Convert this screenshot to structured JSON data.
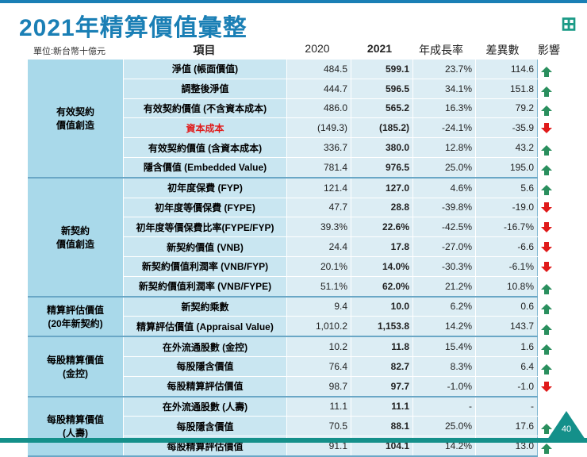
{
  "title": "2021年精算價值彙整",
  "unit": "單位:新台幣十億元",
  "headers": {
    "item": "項目",
    "y2020": "2020",
    "y2021": "2021",
    "growth": "年成長率",
    "diff": "差異數",
    "impact": "影響"
  },
  "page_number": "40",
  "colors": {
    "up": "#2a8f5e",
    "down": "#e01a1a",
    "accent": "#1a7fb5"
  },
  "groups": [
    {
      "label": "有效契約\n價值創造",
      "rows": [
        {
          "item": "淨值 (帳面價值)",
          "y2020": "484.5",
          "y2021": "599.1",
          "growth": "23.7%",
          "diff": "114.6",
          "impact": "up"
        },
        {
          "item": "調整後淨值",
          "y2020": "444.7",
          "y2021": "596.5",
          "growth": "34.1%",
          "diff": "151.8",
          "impact": "up"
        },
        {
          "item": "有效契約價值 (不含資本成本)",
          "y2020": "486.0",
          "y2021": "565.2",
          "growth": "16.3%",
          "diff": "79.2",
          "impact": "up"
        },
        {
          "item": "資本成本",
          "y2020": "(149.3)",
          "y2021": "(185.2)",
          "growth": "-24.1%",
          "diff": "-35.9",
          "impact": "down",
          "negative": true
        },
        {
          "item": "有效契約價值 (含資本成本)",
          "y2020": "336.7",
          "y2021": "380.0",
          "growth": "12.8%",
          "diff": "43.2",
          "impact": "up"
        },
        {
          "item": "隱含價值 (Embedded Value)",
          "y2020": "781.4",
          "y2021": "976.5",
          "growth": "25.0%",
          "diff": "195.0",
          "impact": "up"
        }
      ]
    },
    {
      "label": "新契約\n價值創造",
      "rows": [
        {
          "item": "初年度保費 (FYP)",
          "y2020": "121.4",
          "y2021": "127.0",
          "growth": "4.6%",
          "diff": "5.6",
          "impact": "up"
        },
        {
          "item": "初年度等價保費 (FYPE)",
          "y2020": "47.7",
          "y2021": "28.8",
          "growth": "-39.8%",
          "diff": "-19.0",
          "impact": "down"
        },
        {
          "item": "初年度等價保費比率(FYPE/FYP)",
          "y2020": "39.3%",
          "y2021": "22.6%",
          "growth": "-42.5%",
          "diff": "-16.7%",
          "impact": "down"
        },
        {
          "item": "新契約價值 (VNB)",
          "y2020": "24.4",
          "y2021": "17.8",
          "growth": "-27.0%",
          "diff": "-6.6",
          "impact": "down"
        },
        {
          "item": "新契約價值利潤率 (VNB/FYP)",
          "y2020": "20.1%",
          "y2021": "14.0%",
          "growth": "-30.3%",
          "diff": "-6.1%",
          "impact": "down"
        },
        {
          "item": "新契約價值利潤率 (VNB/FYPE)",
          "y2020": "51.1%",
          "y2021": "62.0%",
          "growth": "21.2%",
          "diff": "10.8%",
          "impact": "up"
        }
      ]
    },
    {
      "label": "精算評估價值\n(20年新契約)",
      "rows": [
        {
          "item": "新契約乘數",
          "y2020": "9.4",
          "y2021": "10.0",
          "growth": "6.2%",
          "diff": "0.6",
          "impact": "up"
        },
        {
          "item": "精算評估價值 (Appraisal Value)",
          "y2020": "1,010.2",
          "y2021": "1,153.8",
          "growth": "14.2%",
          "diff": "143.7",
          "impact": "up"
        }
      ]
    },
    {
      "label": "每股精算價值\n(金控)",
      "rows": [
        {
          "item": "在外流通股數 (金控)",
          "y2020": "10.2",
          "y2021": "11.8",
          "growth": "15.4%",
          "diff": "1.6",
          "impact": "up"
        },
        {
          "item": "每股隱含價值",
          "y2020": "76.4",
          "y2021": "82.7",
          "growth": "8.3%",
          "diff": "6.4",
          "impact": "up"
        },
        {
          "item": "每股精算評估價值",
          "y2020": "98.7",
          "y2021": "97.7",
          "growth": "-1.0%",
          "diff": "-1.0",
          "impact": "down"
        }
      ]
    },
    {
      "label": "每股精算價值\n(人壽)",
      "rows": [
        {
          "item": "在外流通股數 (人壽)",
          "y2020": "11.1",
          "y2021": "11.1",
          "growth": "-",
          "diff": "-",
          "impact": ""
        },
        {
          "item": "每股隱含價值",
          "y2020": "70.5",
          "y2021": "88.1",
          "growth": "25.0%",
          "diff": "17.6",
          "impact": "up"
        },
        {
          "item": "每股精算評估價值",
          "y2020": "91.1",
          "y2021": "104.1",
          "growth": "14.2%",
          "diff": "13.0",
          "impact": "up"
        }
      ]
    }
  ]
}
